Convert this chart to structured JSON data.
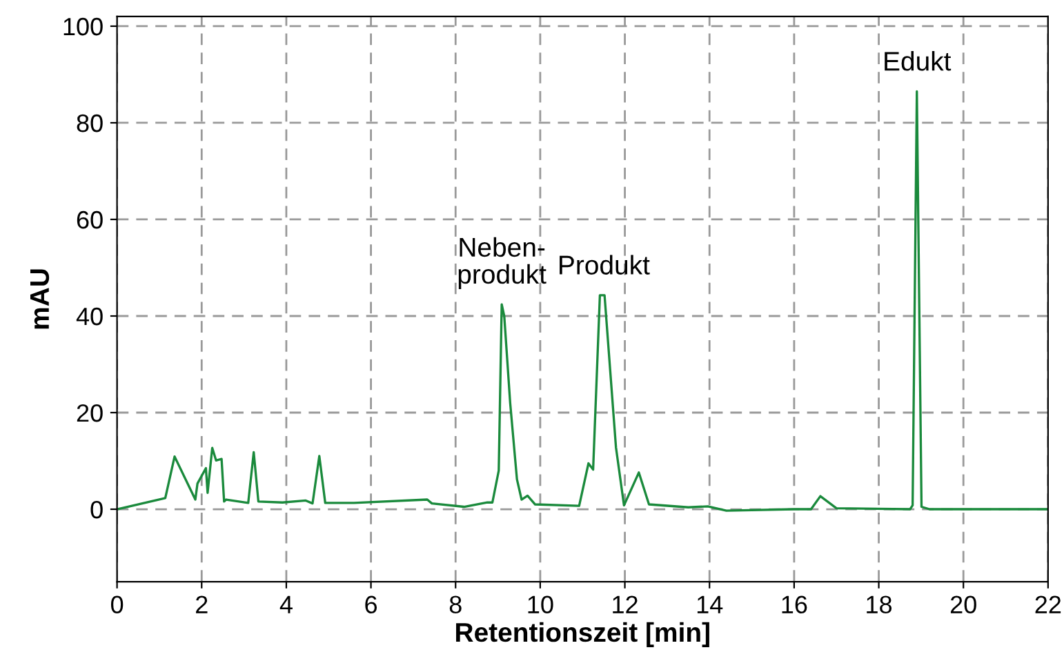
{
  "chart_data": {
    "type": "line",
    "xlabel": "Retentionszeit [min]",
    "ylabel": "mAU",
    "x": [
      0,
      1.14,
      1.36,
      1.85,
      1.9,
      2.1,
      2.14,
      2.25,
      2.34,
      2.47,
      2.53,
      2.58,
      3.1,
      3.23,
      3.34,
      3.91,
      4.46,
      4.62,
      4.78,
      4.92,
      5.6,
      7.33,
      7.44,
      8.2,
      8.75,
      8.87,
      9.02,
      9.09,
      9.15,
      9.29,
      9.45,
      9.56,
      9.7,
      9.88,
      10.92,
      11.14,
      11.25,
      11.41,
      11.52,
      11.79,
      11.98,
      12.33,
      12.57,
      13.5,
      13.96,
      14.4,
      16.0,
      16.4,
      16.62,
      17.0,
      18.74,
      18.8,
      18.9,
      19.01,
      19.2,
      22
    ],
    "series": [
      {
        "color": "#1a8a3c",
        "values": [
          0,
          2.3,
          10.9,
          2.0,
          5.3,
          8.5,
          3.4,
          12.7,
          10.1,
          10.4,
          1.6,
          2.0,
          1.3,
          11.8,
          1.6,
          1.4,
          1.8,
          1.2,
          11.0,
          1.3,
          1.3,
          2.0,
          1.2,
          0.5,
          1.4,
          1.4,
          8,
          42.4,
          40,
          22,
          6.2,
          2,
          2.8,
          1.0,
          0.7,
          9.5,
          8.2,
          44.3,
          44.3,
          12.8,
          0.8,
          7.6,
          1,
          0.4,
          0.6,
          -0.3,
          0,
          0,
          2.7,
          0.2,
          0,
          0.8,
          86.5,
          0.5,
          0,
          0
        ]
      }
    ],
    "xlim": [
      0,
      22
    ],
    "xticks": [
      0,
      2,
      4,
      6,
      8,
      10,
      12,
      14,
      16,
      18,
      20,
      22
    ],
    "ylim": [
      -15,
      102
    ],
    "yticks": [
      0,
      20,
      40,
      60,
      80,
      100
    ],
    "grid": true,
    "line_style": "solid",
    "marker": "none",
    "annotations": [
      {
        "text": "Neben-\nprodukt",
        "x": 9.09,
        "y": 42.4
      },
      {
        "text": "Produkt",
        "x": 11.5,
        "y": 44.3
      },
      {
        "text": "Edukt",
        "x": 18.9,
        "y": 86.5
      }
    ]
  }
}
